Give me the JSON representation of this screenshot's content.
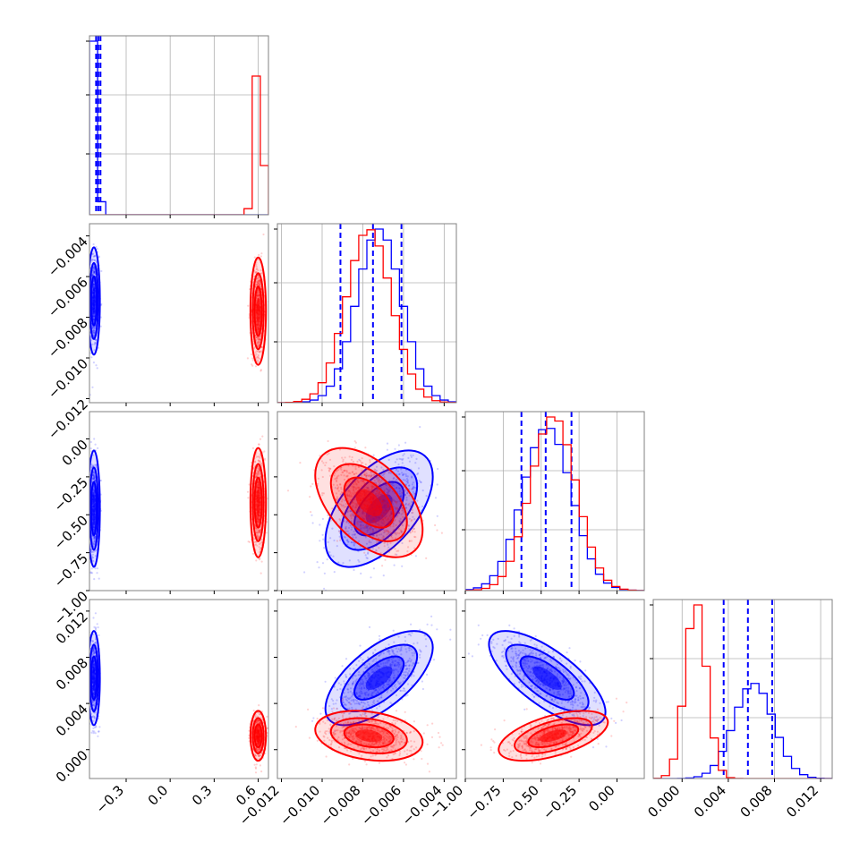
{
  "chart_data": {
    "type": "corner",
    "series": [
      {
        "name": "",
        "color": "#0000ff",
        "means": [
          -0.52,
          -0.0072,
          -0.46,
          0.0062
        ],
        "sds": [
          0.017,
          0.0011,
          0.16,
          0.0017
        ],
        "correlations": {
          "1_0": 0.0,
          "2_0": 0.0,
          "3_0": 0.0,
          "2_1": 0.55,
          "3_1": 0.65,
          "3_2": -0.72
        },
        "quantile_lines": {
          "0": [
            -0.505,
            -0.49,
            -0.475
          ],
          "1": [
            -0.0091,
            -0.0075,
            -0.0061
          ],
          "2": [
            -0.63,
            -0.47,
            -0.3
          ],
          "3": [
            0.0036,
            0.0057,
            0.0078
          ]
        }
      },
      {
        "name": "",
        "color": "#ff0000",
        "means": [
          0.6,
          -0.0077,
          -0.42,
          0.0012
        ],
        "sds": [
          0.022,
          0.0011,
          0.15,
          0.0009
        ],
        "correlations": {
          "1_0": 0.0,
          "2_0": 0.0,
          "3_0": 0.0,
          "2_1": -0.5,
          "3_1": -0.25,
          "3_2": 0.55
        },
        "quantile_lines": null
      }
    ],
    "ranges": [
      [
        -0.55,
        0.67
      ],
      [
        -0.0122,
        -0.0034
      ],
      [
        -1.0,
        0.18
      ],
      [
        -0.0025,
        0.013
      ]
    ],
    "ticks": {
      "0": [
        "−0.3",
        "0.0",
        "0.3",
        "0.6"
      ],
      "1": [
        "−0.012",
        "−0.010",
        "−0.008",
        "−0.006",
        "−0.004"
      ],
      "2": [
        "−1.00",
        "−0.75",
        "−0.50",
        "−0.25",
        "0.00"
      ],
      "3": [
        "0.000",
        "0.004",
        "0.008",
        "0.012"
      ]
    },
    "tick_values": {
      "0": [
        -0.3,
        0.0,
        0.3,
        0.6
      ],
      "1": [
        -0.012,
        -0.01,
        -0.008,
        -0.006,
        -0.004
      ],
      "2": [
        -1.0,
        -0.75,
        -0.5,
        -0.25,
        0.0
      ],
      "3": [
        0.0,
        0.004,
        0.008,
        0.012
      ]
    },
    "grid": true,
    "xlabel": "",
    "ylabel": "",
    "title": ""
  }
}
